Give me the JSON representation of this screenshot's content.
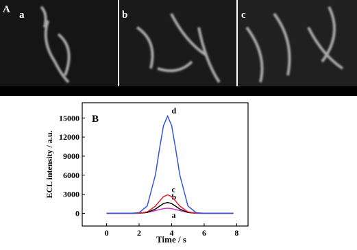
{
  "panel_a": {
    "label": "A",
    "images": [
      "a",
      "b",
      "c"
    ]
  },
  "chart_data": {
    "type": "line",
    "panel_label": "B",
    "x_label": "Time / s",
    "y_label": "ECL intensity / a.u.",
    "x": [
      0,
      0.5,
      1,
      1.5,
      2,
      2.5,
      3,
      3.25,
      3.5,
      3.75,
      4,
      4.25,
      4.5,
      5,
      5.5,
      6,
      6.5,
      7,
      7.5,
      7.8
    ],
    "series": [
      {
        "name": "a",
        "color": "#cc33cc",
        "values": [
          0,
          0,
          0,
          0,
          30,
          150,
          420,
          600,
          740,
          800,
          740,
          600,
          420,
          150,
          30,
          0,
          0,
          0,
          0,
          0
        ]
      },
      {
        "name": "b",
        "color": "#000000",
        "values": [
          0,
          0,
          0,
          0,
          10,
          130,
          670,
          1120,
          1530,
          1700,
          1530,
          1120,
          670,
          130,
          10,
          0,
          0,
          0,
          0,
          0
        ]
      },
      {
        "name": "c",
        "color": "#e8202a",
        "values": [
          0,
          0,
          0,
          0,
          20,
          220,
          1140,
          1910,
          2620,
          2900,
          2620,
          1910,
          1140,
          220,
          20,
          0,
          0,
          0,
          0,
          0
        ]
      },
      {
        "name": "d",
        "color": "#3355dd",
        "values": [
          0,
          0,
          0,
          0,
          100,
          1160,
          6040,
          10100,
          13800,
          15300,
          13800,
          10100,
          6040,
          1160,
          100,
          0,
          0,
          0,
          0,
          0
        ]
      }
    ],
    "xlim": [
      -1.5,
      8.7
    ],
    "xticks": [
      0,
      2,
      4,
      6,
      8
    ],
    "ylim": [
      -2000,
      17400
    ],
    "yticks": [
      0,
      3000,
      6000,
      9000,
      12000,
      15000
    ]
  }
}
